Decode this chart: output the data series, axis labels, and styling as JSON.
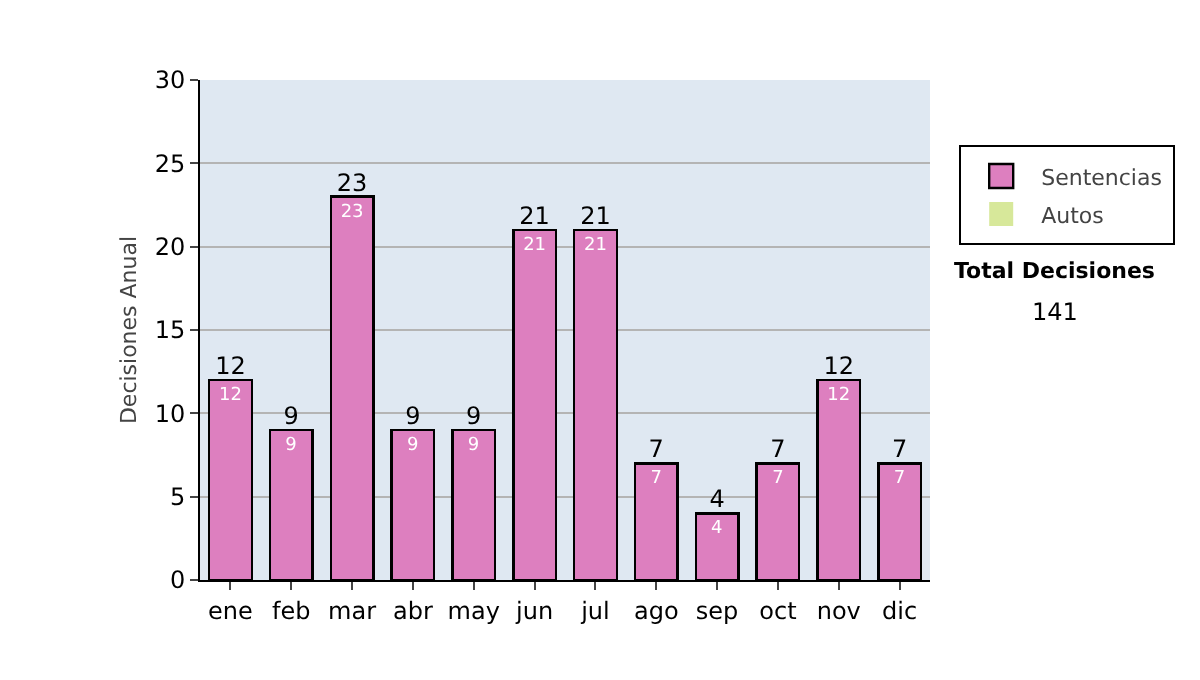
{
  "chart_data": {
    "type": "bar",
    "stacked": true,
    "ylabel": "Decisiones Anual",
    "categories": [
      "ene",
      "feb",
      "mar",
      "abr",
      "may",
      "jun",
      "jul",
      "ago",
      "sep",
      "oct",
      "nov",
      "dic"
    ],
    "series": [
      {
        "name": "Sentencias",
        "color": "#dd7fbf",
        "values": [
          12,
          9,
          23,
          9,
          9,
          21,
          21,
          7,
          4,
          7,
          12,
          7
        ],
        "value_labels": [
          "12",
          "9",
          "23",
          "9",
          "9",
          "21",
          "21",
          "7",
          "4",
          "7",
          "12",
          "7"
        ]
      },
      {
        "name": "Autos",
        "color": "#d7e89a",
        "values": [
          0,
          0,
          0,
          0,
          0,
          0,
          0,
          0,
          0,
          0,
          0,
          0
        ]
      }
    ],
    "totals": [
      "12",
      "9",
      "23",
      "9",
      "9",
      "21",
      "21",
      "7",
      "4",
      "7",
      "12",
      "7"
    ],
    "ylim": [
      0,
      30
    ],
    "yticks": [
      0,
      5,
      10,
      15,
      20,
      25,
      30
    ],
    "grid": "y",
    "legend": "right",
    "annotations": [
      "Total Decisiones",
      "141"
    ]
  }
}
